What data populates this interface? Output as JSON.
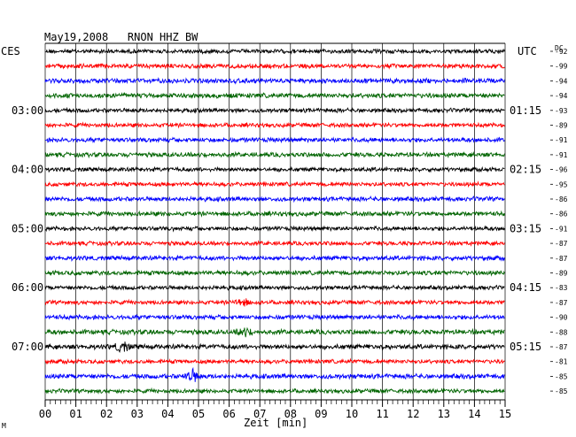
{
  "chart_data": {
    "type": "line",
    "title": "May19,2008   RNON HHZ BW",
    "left_timezone": "CES",
    "right_timezone": "UTC",
    "dc_header": "DC",
    "xlabel": "Zeit [min]",
    "xlim": [
      0,
      15
    ],
    "x_ticks": [
      "00",
      "01",
      "02",
      "03",
      "04",
      "05",
      "06",
      "07",
      "08",
      "09",
      "10",
      "11",
      "12",
      "13",
      "14",
      "15"
    ],
    "trace_colors": [
      "#000000",
      "#ff0000",
      "#0000ff",
      "#006400"
    ],
    "dc_offsets": [
      -92,
      -99,
      -94,
      -94,
      -93,
      -89,
      -91,
      -91,
      -96,
      -95,
      -86,
      -86,
      -91,
      -87,
      -87,
      -89,
      -83,
      -87,
      -90,
      -88,
      -87,
      -81,
      -85,
      -85
    ],
    "left_hour_labels": [
      {
        "row": 4,
        "label": "03:00"
      },
      {
        "row": 8,
        "label": "04:00"
      },
      {
        "row": 12,
        "label": "05:00"
      },
      {
        "row": 16,
        "label": "06:00"
      },
      {
        "row": 20,
        "label": "07:00"
      }
    ],
    "right_hour_labels": [
      {
        "row": 4,
        "label": "01:15"
      },
      {
        "row": 8,
        "label": "02:15"
      },
      {
        "row": 12,
        "label": "03:15"
      },
      {
        "row": 16,
        "label": "04:15"
      },
      {
        "row": 20,
        "label": "05:15"
      }
    ],
    "amplitude": [
      2.6,
      2.8,
      3.0,
      3.0,
      2.6,
      2.6,
      2.8,
      2.8,
      2.6,
      2.6,
      2.8,
      2.8,
      2.6,
      2.6,
      2.8,
      2.8,
      2.6,
      2.6,
      2.8,
      3.0,
      3.0,
      2.6,
      3.0,
      2.6
    ],
    "events": [
      {
        "row": 17,
        "minute": 6.4,
        "strength": 2.0
      },
      {
        "row": 19,
        "minute": 6.5,
        "strength": 2.2
      },
      {
        "row": 20,
        "minute": 2.5,
        "strength": 2.4
      },
      {
        "row": 22,
        "minute": 4.8,
        "strength": 3.2
      }
    ],
    "grid": true
  },
  "footer_mark": "M"
}
